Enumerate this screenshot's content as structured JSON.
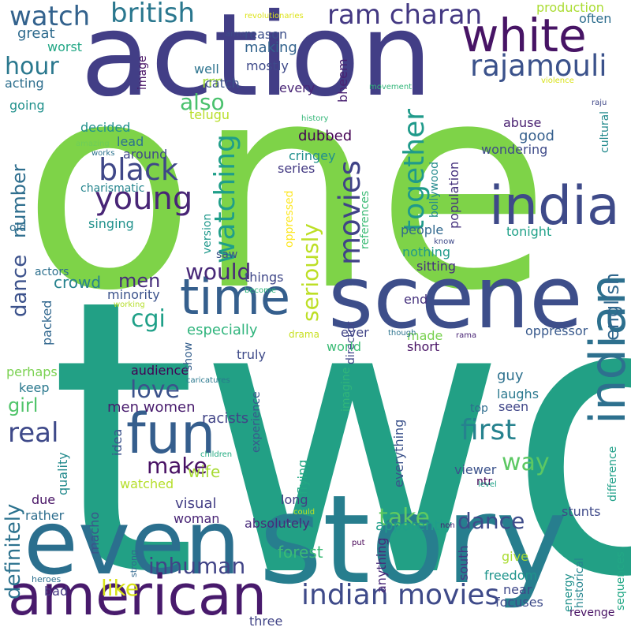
{
  "background": "#ffffff",
  "words": [
    {
      "text": "one",
      "color": "#7ed348"
    },
    {
      "text": "two",
      "color": "#22a085"
    },
    {
      "text": "action",
      "color": "#423e86"
    },
    {
      "text": "story",
      "color": "#277e8e"
    },
    {
      "text": "even",
      "color": "#2b6f8e"
    },
    {
      "text": "scene",
      "color": "#3d4e8a"
    },
    {
      "text": "american",
      "color": "#481a6c"
    },
    {
      "text": "white",
      "color": "#471465"
    },
    {
      "text": "india",
      "color": "#3e4a89"
    },
    {
      "text": "indian",
      "color": "#2d708e"
    },
    {
      "text": "fun",
      "color": "#355e8d"
    },
    {
      "text": "time",
      "color": "#355f8d"
    },
    {
      "text": "watch",
      "color": "#33628d"
    },
    {
      "text": "british",
      "color": "#2a778e"
    },
    {
      "text": "ram charan",
      "color": "#443983"
    },
    {
      "text": "rajamouli",
      "color": "#3b528b"
    },
    {
      "text": "young",
      "color": "#482576"
    },
    {
      "text": "black",
      "color": "#3f4788"
    },
    {
      "text": "movies",
      "color": "#404387"
    },
    {
      "text": "indian movies",
      "color": "#3e4a89"
    },
    {
      "text": "watching",
      "color": "#1f9e89"
    },
    {
      "text": "together",
      "color": "#1f9a8a"
    },
    {
      "text": "seriously",
      "color": "#bddf26"
    },
    {
      "text": "first",
      "color": "#26828e"
    },
    {
      "text": "real",
      "color": "#3e4989"
    },
    {
      "text": "make",
      "color": "#471063"
    },
    {
      "text": "love",
      "color": "#3b528b"
    },
    {
      "text": "way",
      "color": "#5cc863"
    },
    {
      "text": "dance",
      "color": "#3e4c8a"
    },
    {
      "text": "take",
      "color": "#5ec962"
    },
    {
      "text": "inhuman",
      "color": "#414487"
    },
    {
      "text": "like",
      "color": "#d8e219"
    },
    {
      "text": "definitely",
      "color": "#2c728e"
    },
    {
      "text": "would",
      "color": "#482878"
    },
    {
      "text": "cgi",
      "color": "#1fa088"
    },
    {
      "text": "hour",
      "color": "#2a788e"
    },
    {
      "text": "also",
      "color": "#4ac16d"
    },
    {
      "text": "men",
      "color": "#472d7b"
    },
    {
      "text": "girl",
      "color": "#50c46a"
    },
    {
      "text": "number",
      "color": "#2e6e8e"
    },
    {
      "text": "english",
      "color": "#31688e"
    },
    {
      "text": "dance",
      "color": "#3b518b"
    },
    {
      "text": "great",
      "color": "#2f6b8e"
    },
    {
      "text": "worst",
      "color": "#22a785"
    },
    {
      "text": "acting",
      "color": "#2e6f8e"
    },
    {
      "text": "going",
      "color": "#21918c"
    },
    {
      "text": "decided",
      "color": "#21918c"
    },
    {
      "text": "lead",
      "color": "#2c728e"
    },
    {
      "text": "around",
      "color": "#3f4889"
    },
    {
      "text": "charismatic",
      "color": "#25858e"
    },
    {
      "text": "singing",
      "color": "#21918c"
    },
    {
      "text": "old",
      "color": "#2e6d8e"
    },
    {
      "text": "actors",
      "color": "#2d708e"
    },
    {
      "text": "crowd",
      "color": "#26828e"
    },
    {
      "text": "minority",
      "color": "#3b528b"
    },
    {
      "text": "packed",
      "color": "#31678e"
    },
    {
      "text": "especially",
      "color": "#2fb47c"
    },
    {
      "text": "men women",
      "color": "#481b6d"
    },
    {
      "text": "wife",
      "color": "#a8db34"
    },
    {
      "text": "watched",
      "color": "#b5de2b"
    },
    {
      "text": "visual",
      "color": "#433e85"
    },
    {
      "text": "woman",
      "color": "#482475"
    },
    {
      "text": "due",
      "color": "#471365"
    },
    {
      "text": "rather",
      "color": "#2e6e8e"
    },
    {
      "text": "quality",
      "color": "#238a8d"
    },
    {
      "text": "macho",
      "color": "#3b528b"
    },
    {
      "text": "bad",
      "color": "#453882"
    },
    {
      "text": "heroes",
      "color": "#2d708e"
    },
    {
      "text": "strong",
      "color": "#31688e"
    },
    {
      "text": "keep",
      "color": "#2a788e"
    },
    {
      "text": "perhaps",
      "color": "#7ad151"
    },
    {
      "text": "audience",
      "color": "#440154"
    },
    {
      "text": "racists",
      "color": "#414487"
    },
    {
      "text": "idea",
      "color": "#3b528b"
    },
    {
      "text": "show",
      "color": "#355f8d"
    },
    {
      "text": "truly",
      "color": "#3e4a89"
    },
    {
      "text": "saw",
      "color": "#3b528b"
    },
    {
      "text": "things",
      "color": "#3f4788"
    },
    {
      "text": "experience",
      "color": "#38598c"
    },
    {
      "text": "flying",
      "color": "#22a884"
    },
    {
      "text": "long",
      "color": "#433d84"
    },
    {
      "text": "absolutely",
      "color": "#472a7a"
    },
    {
      "text": "forest",
      "color": "#3bbb75"
    },
    {
      "text": "anything",
      "color": "#482878"
    },
    {
      "text": "bheem",
      "color": "#482071"
    },
    {
      "text": "rrr",
      "color": "#a0da39"
    },
    {
      "text": "telugu",
      "color": "#b8de29"
    },
    {
      "text": "catch",
      "color": "#3b528b"
    },
    {
      "text": "well",
      "color": "#2c738e"
    },
    {
      "text": "every",
      "color": "#482475"
    },
    {
      "text": "making",
      "color": "#33638d"
    },
    {
      "text": "mostly",
      "color": "#3e4989"
    },
    {
      "text": "reason",
      "color": "#3c4f8a"
    },
    {
      "text": "arms",
      "color": "#3e4a89"
    },
    {
      "text": "revolutionaries",
      "color": "#dde318"
    },
    {
      "text": "production",
      "color": "#aadc32"
    },
    {
      "text": "often",
      "color": "#2e6e8e"
    },
    {
      "text": "image",
      "color": "#471164"
    },
    {
      "text": "dubbed",
      "color": "#440154"
    },
    {
      "text": "population",
      "color": "#46327e"
    },
    {
      "text": "cringey",
      "color": "#21908d"
    },
    {
      "text": "series",
      "color": "#443a83"
    },
    {
      "text": "bollywood",
      "color": "#238a8d"
    },
    {
      "text": "references",
      "color": "#3bbb75"
    },
    {
      "text": "oppressed",
      "color": "#fde725"
    },
    {
      "text": "version",
      "color": "#1f988b"
    },
    {
      "text": "people",
      "color": "#31688e"
    },
    {
      "text": "nothing",
      "color": "#1f9a8a"
    },
    {
      "text": "sitting",
      "color": "#46307e"
    },
    {
      "text": "end",
      "color": "#46327e"
    },
    {
      "text": "director",
      "color": "#404588"
    },
    {
      "text": "made",
      "color": "#7ad151"
    },
    {
      "text": "ever",
      "color": "#414487"
    },
    {
      "text": "short",
      "color": "#471164"
    },
    {
      "text": "world",
      "color": "#3bbb75"
    },
    {
      "text": "drama",
      "color": "#c8e020"
    },
    {
      "text": "oppressor",
      "color": "#38598c"
    },
    {
      "text": "guy",
      "color": "#2d718e"
    },
    {
      "text": "laughs",
      "color": "#2a788e"
    },
    {
      "text": "seen",
      "color": "#404688"
    },
    {
      "text": "top",
      "color": "#2e6d8e"
    },
    {
      "text": "everything",
      "color": "#3b528b"
    },
    {
      "text": "viewer",
      "color": "#3b528b"
    },
    {
      "text": "ntr",
      "color": "#440154"
    },
    {
      "text": "imagine",
      "color": "#31b57b"
    },
    {
      "text": "apparently",
      "color": "#1f9e89"
    },
    {
      "text": "south",
      "color": "#443a83"
    },
    {
      "text": "freedom",
      "color": "#1f948c"
    },
    {
      "text": "near",
      "color": "#3f4889"
    },
    {
      "text": "focuses",
      "color": "#3e4c8a"
    },
    {
      "text": "give",
      "color": "#aadc32"
    },
    {
      "text": "historical",
      "color": "#25848e"
    },
    {
      "text": "energy",
      "color": "#21918c"
    },
    {
      "text": "sequences",
      "color": "#22a785"
    },
    {
      "text": "revenge",
      "color": "#471063"
    },
    {
      "text": "stunts",
      "color": "#3e4989"
    },
    {
      "text": "difference",
      "color": "#1fa088"
    },
    {
      "text": "three",
      "color": "#414487"
    },
    {
      "text": "put",
      "color": "#440154"
    },
    {
      "text": "non",
      "color": "#482173"
    },
    {
      "text": "could",
      "color": "#bddf26"
    },
    {
      "text": "level",
      "color": "#1fa187"
    },
    {
      "text": "children",
      "color": "#25ac82"
    },
    {
      "text": "caricatures",
      "color": "#2a788e"
    },
    {
      "text": "though",
      "color": "#2c738e"
    },
    {
      "text": "rama",
      "color": "#482475"
    },
    {
      "text": "become",
      "color": "#2fb47c"
    },
    {
      "text": "working",
      "color": "#b5de2b"
    },
    {
      "text": "movement",
      "color": "#32b67a"
    },
    {
      "text": "violence",
      "color": "#d8e219"
    },
    {
      "text": "history",
      "color": "#35b779"
    },
    {
      "text": "amazing",
      "color": "#6ece58"
    },
    {
      "text": "works",
      "color": "#2c728e"
    },
    {
      "text": "know",
      "color": "#3e4989"
    },
    {
      "text": "raju",
      "color": "#3f4788"
    },
    {
      "text": "cultural",
      "color": "#238a8d"
    },
    {
      "text": "wondering",
      "color": "#3e4a89"
    },
    {
      "text": "abuse",
      "color": "#481f70"
    },
    {
      "text": "good",
      "color": "#355f8d"
    },
    {
      "text": "tonight",
      "color": "#1fa188"
    }
  ]
}
